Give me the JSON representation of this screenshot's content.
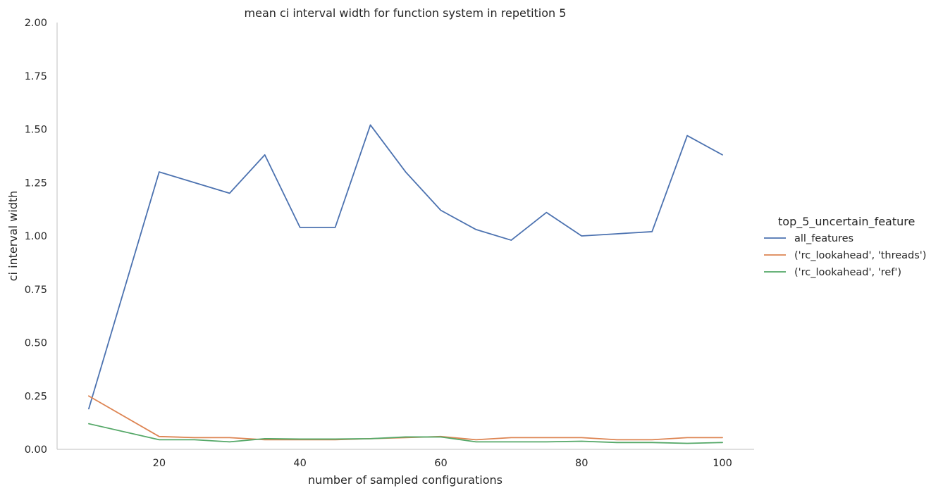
{
  "chart_data": {
    "type": "line",
    "title": "mean ci interval width for function system in repetition 5",
    "xlabel": "number of sampled configurations",
    "ylabel": "ci interval width",
    "xlim": [
      5.5,
      104.5
    ],
    "ylim": [
      0,
      2
    ],
    "x_ticks": [
      20,
      40,
      60,
      80,
      100
    ],
    "y_ticks": [
      "0.00",
      "0.25",
      "0.50",
      "0.75",
      "1.00",
      "1.25",
      "1.50",
      "1.75",
      "2.00"
    ],
    "grid": false,
    "legend": {
      "title": "top_5_uncertain_feature",
      "placement": "right"
    },
    "x": [
      10,
      20,
      25,
      30,
      35,
      40,
      45,
      50,
      55,
      60,
      65,
      70,
      75,
      80,
      85,
      90,
      95,
      100
    ],
    "series": [
      {
        "name": "all_features",
        "color": "#4c72b0",
        "values": [
          0.19,
          1.3,
          1.25,
          1.2,
          1.38,
          1.04,
          1.04,
          1.52,
          1.3,
          1.12,
          1.03,
          0.98,
          1.11,
          1.0,
          1.01,
          1.02,
          1.47,
          1.38
        ]
      },
      {
        "name": "('rc_lookahead', 'threads')",
        "color": "#dd8452",
        "values": [
          0.25,
          0.06,
          0.055,
          0.055,
          0.045,
          0.045,
          0.045,
          0.05,
          0.055,
          0.06,
          0.045,
          0.055,
          0.055,
          0.055,
          0.045,
          0.045,
          0.055,
          0.055
        ]
      },
      {
        "name": "('rc_lookahead', 'ref')",
        "color": "#55a868",
        "values": [
          0.12,
          0.045,
          0.045,
          0.035,
          0.05,
          0.048,
          0.048,
          0.05,
          0.058,
          0.058,
          0.035,
          0.035,
          0.035,
          0.038,
          0.032,
          0.032,
          0.028,
          0.032
        ]
      }
    ]
  }
}
